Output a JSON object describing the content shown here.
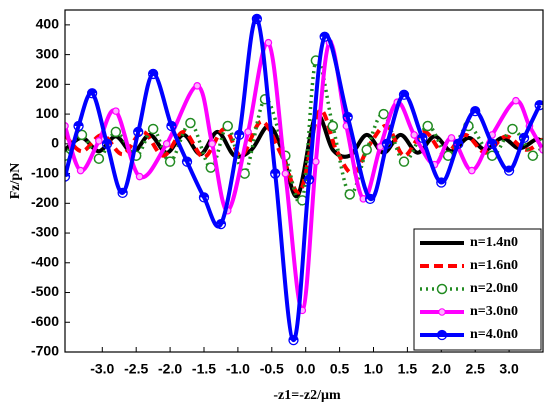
{
  "chart_data": {
    "type": "line",
    "x_label": "-z1=-z2/μm",
    "y_label": "Fz/pN",
    "xlim": [
      -3.55,
      3.5
    ],
    "ylim": [
      -700,
      450
    ],
    "xticks": [
      {
        "value": -3,
        "label": "-3.0"
      },
      {
        "value": -2.5,
        "label": "-2.5"
      },
      {
        "value": -2,
        "label": "-2.0"
      },
      {
        "value": -1.5,
        "label": "-1.5"
      },
      {
        "value": -1,
        "label": "-1.0"
      },
      {
        "value": -0.5,
        "label": "-0.5"
      },
      {
        "value": 0,
        "label": "0.0"
      },
      {
        "value": 0.5,
        "label": "0.5"
      },
      {
        "value": 1,
        "label": "1.0"
      },
      {
        "value": 1.5,
        "label": "1.5"
      },
      {
        "value": 2,
        "label": "2.0"
      },
      {
        "value": 2.5,
        "label": "2.5"
      },
      {
        "value": 3,
        "label": "3.0"
      }
    ],
    "yticks": [
      -700,
      -600,
      -500,
      -400,
      -300,
      -200,
      -100,
      0,
      100,
      200,
      300,
      400
    ],
    "legend": "lower right",
    "series": [
      {
        "name": "n=1.4n0",
        "color": "#000000",
        "line_style": "solid",
        "marker": "none",
        "x": [
          -3.55,
          -3.3,
          -3.05,
          -2.8,
          -2.55,
          -2.3,
          -2.05,
          -1.8,
          -1.55,
          -1.3,
          -1.05,
          -0.8,
          -0.55,
          -0.35,
          -0.12,
          0.15,
          0.4,
          0.65,
          0.9,
          1.15,
          1.4,
          1.65,
          1.9,
          2.15,
          2.4,
          2.65,
          2.9,
          3.15,
          3.4,
          3.5
        ],
        "values": [
          -20,
          20,
          -25,
          25,
          -30,
          30,
          -30,
          30,
          -35,
          40,
          -40,
          -20,
          60,
          -20,
          -175,
          95,
          -20,
          -40,
          30,
          -30,
          30,
          -30,
          25,
          -25,
          20,
          -20,
          20,
          -15,
          15,
          5
        ]
      },
      {
        "name": "n=1.6n0",
        "color": "#ff0000",
        "line_style": "dashed",
        "marker": "none",
        "x": [
          -3.55,
          -3.3,
          -3.0,
          -2.7,
          -2.4,
          -2.1,
          -1.8,
          -1.5,
          -1.2,
          -0.95,
          -0.65,
          -0.35,
          -0.08,
          0.2,
          0.45,
          0.7,
          0.95,
          1.2,
          1.45,
          1.75,
          2.05,
          2.35,
          2.65,
          2.95,
          3.25,
          3.5
        ],
        "values": [
          30,
          -25,
          30,
          -35,
          40,
          -40,
          40,
          -45,
          50,
          -40,
          75,
          -40,
          -160,
          110,
          -20,
          -100,
          0,
          60,
          -40,
          40,
          -35,
          30,
          -30,
          25,
          -20,
          15
        ]
      },
      {
        "name": "n=2.0n0",
        "color": "#228b22",
        "line_style": "dotted",
        "marker": "ring",
        "x": [
          -3.55,
          -3.3,
          -3.05,
          -2.8,
          -2.5,
          -2.25,
          -2.0,
          -1.7,
          -1.4,
          -1.15,
          -0.9,
          -0.6,
          -0.3,
          -0.05,
          0.15,
          0.4,
          0.65,
          0.9,
          1.15,
          1.45,
          1.8,
          2.1,
          2.4,
          2.75,
          3.05,
          3.35,
          3.5
        ],
        "values": [
          -40,
          30,
          -50,
          40,
          -40,
          50,
          -60,
          70,
          -80,
          60,
          -100,
          150,
          -40,
          -190,
          280,
          60,
          -170,
          -20,
          100,
          -60,
          60,
          -40,
          60,
          -40,
          50,
          -40,
          0
        ]
      },
      {
        "name": "n=3.0n0",
        "color": "#ff00ff",
        "line_style": "solid",
        "marker": "dot",
        "x": [
          -3.55,
          -3.32,
          -3.05,
          -2.8,
          -2.45,
          -2.05,
          -1.6,
          -1.38,
          -1.15,
          -0.85,
          -0.55,
          -0.3,
          -0.05,
          0.15,
          0.35,
          0.6,
          0.85,
          1.1,
          1.35,
          1.6,
          1.9,
          2.15,
          2.45,
          2.75,
          3.1,
          3.3,
          3.5
        ],
        "values": [
          60,
          -90,
          10,
          110,
          -110,
          0,
          195,
          0,
          -225,
          40,
          340,
          -100,
          -560,
          -60,
          340,
          60,
          -185,
          -10,
          140,
          30,
          -70,
          20,
          -90,
          30,
          145,
          60,
          -20
        ]
      },
      {
        "name": "n=4.0n0",
        "color": "#0000ff",
        "line_style": "solid",
        "marker": "half",
        "x": [
          -3.55,
          -3.35,
          -3.15,
          -2.93,
          -2.7,
          -2.47,
          -2.25,
          -1.98,
          -1.75,
          -1.5,
          -1.25,
          -0.98,
          -0.72,
          -0.45,
          -0.18,
          0.05,
          0.28,
          0.62,
          0.95,
          1.2,
          1.45,
          1.72,
          2.0,
          2.25,
          2.5,
          2.75,
          3.0,
          3.22,
          3.45
        ],
        "values": [
          -110,
          60,
          170,
          0,
          -165,
          40,
          235,
          60,
          -60,
          -180,
          -270,
          30,
          420,
          -100,
          -660,
          -120,
          360,
          90,
          -185,
          0,
          165,
          20,
          -130,
          0,
          110,
          0,
          -90,
          20,
          130
        ]
      }
    ]
  }
}
